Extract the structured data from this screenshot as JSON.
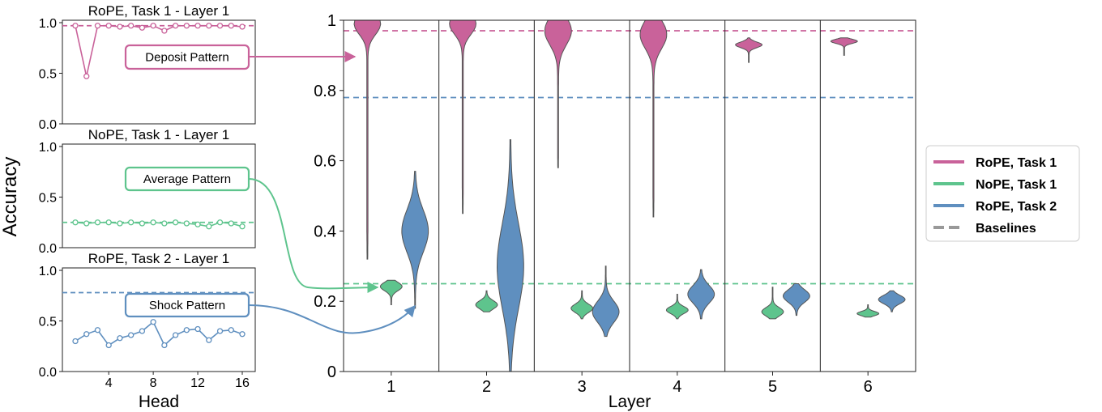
{
  "chart_data": {
    "type": "composite",
    "colors": {
      "rope_task1": "#c9629a",
      "nope_task1": "#5ec48d",
      "rope_task2": "#5f8fbf",
      "baseline_legend": "#999999"
    },
    "panels": [
      {
        "key": "rope1",
        "type": "line",
        "title": "RoPE, Task 1 - Layer 1",
        "color_key": "rope_task1",
        "yticks": [
          "0.0",
          "0.5",
          "1.0"
        ],
        "ylim": [
          0,
          1
        ],
        "baseline": 0.97,
        "x": [
          1,
          2,
          3,
          4,
          5,
          6,
          7,
          8,
          9,
          10,
          11,
          12,
          13,
          14,
          15,
          16
        ],
        "values": [
          0.97,
          0.47,
          0.97,
          0.97,
          0.96,
          0.97,
          0.95,
          0.97,
          0.92,
          0.97,
          0.97,
          0.97,
          0.97,
          0.97,
          0.97,
          0.96
        ],
        "callout": "Deposit Pattern"
      },
      {
        "key": "nope1",
        "type": "line",
        "title": "NoPE, Task 1 - Layer 1",
        "color_key": "nope_task1",
        "yticks": [
          "0.0",
          "0.5",
          "1.0"
        ],
        "ylim": [
          0,
          1
        ],
        "baseline": 0.25,
        "x": [
          1,
          2,
          3,
          4,
          5,
          6,
          7,
          8,
          9,
          10,
          11,
          12,
          13,
          14,
          15,
          16
        ],
        "values": [
          0.25,
          0.24,
          0.25,
          0.25,
          0.24,
          0.25,
          0.24,
          0.25,
          0.24,
          0.25,
          0.24,
          0.23,
          0.21,
          0.25,
          0.24,
          0.21
        ],
        "callout": "Average Pattern"
      },
      {
        "key": "rope2",
        "type": "line",
        "title": "RoPE, Task 2 - Layer 1",
        "color_key": "rope_task2",
        "yticks": [
          "0.0",
          "0.5",
          "1.0"
        ],
        "ylim": [
          0,
          1
        ],
        "baseline": 0.78,
        "x": [
          1,
          2,
          3,
          4,
          5,
          6,
          7,
          8,
          9,
          10,
          11,
          12,
          13,
          14,
          15,
          16
        ],
        "values": [
          0.3,
          0.37,
          0.41,
          0.26,
          0.33,
          0.36,
          0.4,
          0.49,
          0.26,
          0.36,
          0.41,
          0.42,
          0.31,
          0.4,
          0.41,
          0.37
        ],
        "callout": "Shock Pattern"
      }
    ],
    "small_xticks": [
      "4",
      "8",
      "12",
      "16"
    ],
    "small_xlabel": "Head",
    "ylabel": "Accuracy",
    "main": {
      "type": "violin",
      "xlabel": "Layer",
      "layers": [
        "1",
        "2",
        "3",
        "4",
        "5",
        "6"
      ],
      "yticks": [
        "0",
        "0.2",
        "0.4",
        "0.6",
        "0.8",
        "1"
      ],
      "ylim": [
        0,
        1
      ],
      "baselines": {
        "rope_task1": 0.97,
        "nope_task1": 0.25,
        "rope_task2": 0.78
      },
      "violins": [
        {
          "layer": 1,
          "series": "rope_task1",
          "min": 0.32,
          "max": 1.0,
          "center": 0.99,
          "spread": 0.03,
          "tail": 0.3
        },
        {
          "layer": 1,
          "series": "nope_task1",
          "min": 0.19,
          "max": 0.26,
          "center": 0.242,
          "spread": 0.012,
          "tail": 0.0
        },
        {
          "layer": 1,
          "series": "rope_task2",
          "min": 0.18,
          "max": 0.57,
          "center": 0.4,
          "spread": 0.06,
          "tail": 0.0
        },
        {
          "layer": 2,
          "series": "rope_task1",
          "min": 0.45,
          "max": 1.0,
          "center": 0.99,
          "spread": 0.03,
          "tail": 0.25
        },
        {
          "layer": 2,
          "series": "nope_task1",
          "min": 0.17,
          "max": 0.23,
          "center": 0.19,
          "spread": 0.012,
          "tail": 0.0
        },
        {
          "layer": 2,
          "series": "rope_task2",
          "min": 0.0,
          "max": 0.66,
          "center": 0.3,
          "spread": 0.12,
          "tail": 0.0
        },
        {
          "layer": 3,
          "series": "rope_task1",
          "min": 0.58,
          "max": 1.0,
          "center": 0.97,
          "spread": 0.04,
          "tail": 0.2
        },
        {
          "layer": 3,
          "series": "nope_task1",
          "min": 0.15,
          "max": 0.23,
          "center": 0.18,
          "spread": 0.012,
          "tail": 0.0
        },
        {
          "layer": 3,
          "series": "rope_task2",
          "min": 0.1,
          "max": 0.3,
          "center": 0.17,
          "spread": 0.03,
          "tail": 0.0
        },
        {
          "layer": 4,
          "series": "rope_task1",
          "min": 0.44,
          "max": 1.0,
          "center": 0.96,
          "spread": 0.04,
          "tail": 0.22
        },
        {
          "layer": 4,
          "series": "nope_task1",
          "min": 0.15,
          "max": 0.22,
          "center": 0.175,
          "spread": 0.01,
          "tail": 0.0
        },
        {
          "layer": 4,
          "series": "rope_task2",
          "min": 0.15,
          "max": 0.29,
          "center": 0.22,
          "spread": 0.025,
          "tail": 0.0
        },
        {
          "layer": 5,
          "series": "rope_task1",
          "min": 0.88,
          "max": 0.95,
          "center": 0.93,
          "spread": 0.008,
          "tail": 0.0
        },
        {
          "layer": 5,
          "series": "nope_task1",
          "min": 0.15,
          "max": 0.24,
          "center": 0.17,
          "spread": 0.012,
          "tail": 0.0
        },
        {
          "layer": 5,
          "series": "rope_task2",
          "min": 0.16,
          "max": 0.25,
          "center": 0.215,
          "spread": 0.018,
          "tail": 0.0
        },
        {
          "layer": 6,
          "series": "rope_task1",
          "min": 0.9,
          "max": 0.95,
          "center": 0.94,
          "spread": 0.006,
          "tail": 0.0
        },
        {
          "layer": 6,
          "series": "nope_task1",
          "min": 0.155,
          "max": 0.19,
          "center": 0.165,
          "spread": 0.006,
          "tail": 0.0
        },
        {
          "layer": 6,
          "series": "rope_task2",
          "min": 0.17,
          "max": 0.23,
          "center": 0.205,
          "spread": 0.012,
          "tail": 0.0
        }
      ]
    },
    "legend": {
      "position": "right",
      "entries": [
        {
          "label": "RoPE, Task 1",
          "color_key": "rope_task1",
          "style": "solid"
        },
        {
          "label": "NoPE, Task 1",
          "color_key": "nope_task1",
          "style": "solid"
        },
        {
          "label": "RoPE, Task 2",
          "color_key": "rope_task2",
          "style": "solid"
        },
        {
          "label": "Baselines",
          "color_key": "baseline_legend",
          "style": "dashed"
        }
      ]
    }
  }
}
